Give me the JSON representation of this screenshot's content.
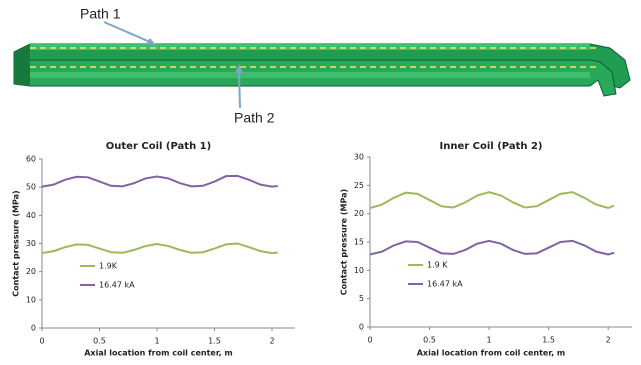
{
  "diagram": {
    "labels": [
      "Path 1",
      "Path 2"
    ]
  },
  "chart_data": [
    {
      "type": "line",
      "title": "Outer Coil (Path 1)",
      "x_label": "Axial location from coil center, m",
      "y_label": "Contact pressure (MPa)",
      "xlim": [
        0,
        2.2
      ],
      "xticks": [
        0,
        0.5,
        1,
        1.5,
        2
      ],
      "ylim": [
        0,
        60
      ],
      "yticks": [
        0,
        10,
        20,
        30,
        40,
        50,
        60
      ],
      "grid": false,
      "legend": "lower left",
      "series": [
        {
          "name": "1.9K",
          "color": "#9bbb59",
          "x": [
            0,
            0.1,
            0.2,
            0.3,
            0.4,
            0.5,
            0.6,
            0.7,
            0.8,
            0.9,
            1.0,
            1.1,
            1.2,
            1.3,
            1.4,
            1.5,
            1.6,
            1.7,
            1.8,
            1.9,
            2.0,
            2.05
          ],
          "values": [
            26.6,
            27.3,
            28.7,
            29.7,
            29.5,
            28.2,
            26.9,
            26.7,
            27.7,
            29.1,
            29.8,
            29.1,
            27.7,
            26.7,
            26.9,
            28.2,
            29.7,
            30.0,
            28.7,
            27.3,
            26.6,
            26.8
          ]
        },
        {
          "name": "16.47 kA",
          "color": "#8064a2",
          "x": [
            0,
            0.1,
            0.2,
            0.3,
            0.4,
            0.5,
            0.6,
            0.7,
            0.8,
            0.9,
            1.0,
            1.1,
            1.2,
            1.3,
            1.4,
            1.5,
            1.6,
            1.7,
            1.8,
            1.9,
            2.0,
            2.05
          ],
          "values": [
            50.2,
            50.9,
            52.6,
            53.7,
            53.5,
            52.0,
            50.5,
            50.3,
            51.4,
            53.1,
            53.8,
            53.1,
            51.4,
            50.3,
            50.5,
            52.0,
            53.9,
            54.0,
            52.6,
            50.9,
            50.2,
            50.4
          ]
        }
      ]
    },
    {
      "type": "line",
      "title": "Inner Coil (Path 2)",
      "x_label": "Axial location from coil center, m",
      "y_label": "Contact pressure (MPa)",
      "xlim": [
        0,
        2.2
      ],
      "xticks": [
        0,
        0.5,
        1,
        1.5,
        2
      ],
      "ylim": [
        0,
        30
      ],
      "yticks": [
        0,
        5,
        10,
        15,
        20,
        25,
        30
      ],
      "grid": false,
      "legend": "lower left",
      "series": [
        {
          "name": "1.9 K",
          "color": "#9bbb59",
          "x": [
            0,
            0.1,
            0.2,
            0.3,
            0.4,
            0.5,
            0.6,
            0.7,
            0.8,
            0.9,
            1.0,
            1.1,
            1.2,
            1.3,
            1.4,
            1.5,
            1.6,
            1.7,
            1.8,
            1.9,
            2.0,
            2.05
          ],
          "values": [
            21.0,
            21.6,
            22.8,
            23.7,
            23.5,
            22.4,
            21.3,
            21.1,
            22.0,
            23.2,
            23.8,
            23.2,
            22.0,
            21.1,
            21.3,
            22.4,
            23.5,
            23.8,
            22.8,
            21.6,
            21.0,
            21.4
          ]
        },
        {
          "name": "16.47 kA",
          "color": "#8064a2",
          "x": [
            0,
            0.1,
            0.2,
            0.3,
            0.4,
            0.5,
            0.6,
            0.7,
            0.8,
            0.9,
            1.0,
            1.1,
            1.2,
            1.3,
            1.4,
            1.5,
            1.6,
            1.7,
            1.8,
            1.9,
            2.0,
            2.05
          ],
          "values": [
            12.8,
            13.3,
            14.4,
            15.1,
            15.0,
            14.0,
            13.0,
            12.9,
            13.6,
            14.7,
            15.2,
            14.7,
            13.6,
            12.9,
            13.0,
            14.0,
            15.0,
            15.2,
            14.4,
            13.3,
            12.8,
            13.1
          ]
        }
      ]
    }
  ]
}
